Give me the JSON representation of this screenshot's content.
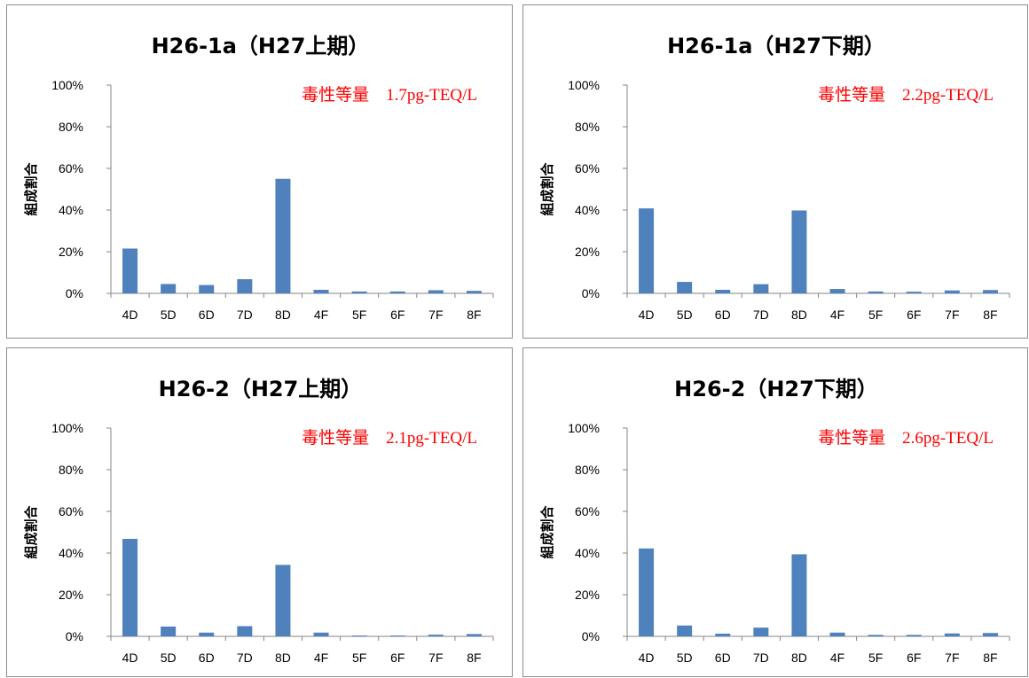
{
  "chart_data": [
    {
      "type": "bar",
      "title": "H26-1a（H27上期）",
      "annotation": "毒性等量　1.7pg-TEQ/L",
      "ylabel": "組成割合",
      "xlabel": "",
      "ylim": [
        0,
        100
      ],
      "yticks": [
        "0%",
        "20%",
        "40%",
        "60%",
        "80%",
        "100%"
      ],
      "categories": [
        "4D",
        "5D",
        "6D",
        "7D",
        "8D",
        "4F",
        "5F",
        "6F",
        "7F",
        "8F"
      ],
      "values": [
        21.5,
        4.5,
        4.0,
        6.8,
        55.0,
        1.7,
        0.9,
        0.9,
        1.5,
        1.2
      ],
      "color": "#4f81bd",
      "grid": false,
      "legend": "none"
    },
    {
      "type": "bar",
      "title": "H26-1a（H27下期）",
      "annotation": "毒性等量　2.2pg-TEQ/L",
      "ylabel": "組成割合",
      "xlabel": "",
      "ylim": [
        0,
        100
      ],
      "yticks": [
        "0%",
        "20%",
        "40%",
        "60%",
        "80%",
        "100%"
      ],
      "categories": [
        "4D",
        "5D",
        "6D",
        "7D",
        "8D",
        "4F",
        "5F",
        "6F",
        "7F",
        "8F"
      ],
      "values": [
        40.8,
        5.5,
        1.7,
        4.4,
        39.8,
        2.1,
        0.9,
        0.8,
        1.4,
        1.6
      ],
      "color": "#4f81bd",
      "grid": false,
      "legend": "none"
    },
    {
      "type": "bar",
      "title": "H26-2（H27上期）",
      "annotation": "毒性等量　2.1pg-TEQ/L",
      "ylabel": "組成割合",
      "xlabel": "",
      "ylim": [
        0,
        100
      ],
      "yticks": [
        "0%",
        "20%",
        "40%",
        "60%",
        "80%",
        "100%"
      ],
      "categories": [
        "4D",
        "5D",
        "6D",
        "7D",
        "8D",
        "4F",
        "5F",
        "6F",
        "7F",
        "8F"
      ],
      "values": [
        46.8,
        4.7,
        1.8,
        4.9,
        34.3,
        1.8,
        0.4,
        0.4,
        0.8,
        1.1
      ],
      "color": "#4f81bd",
      "grid": false,
      "legend": "none"
    },
    {
      "type": "bar",
      "title": "H26-2（H27下期）",
      "annotation": "毒性等量　2.6pg-TEQ/L",
      "ylabel": "組成割合",
      "xlabel": "",
      "ylim": [
        0,
        100
      ],
      "yticks": [
        "0%",
        "20%",
        "40%",
        "60%",
        "80%",
        "100%"
      ],
      "categories": [
        "4D",
        "5D",
        "6D",
        "7D",
        "8D",
        "4F",
        "5F",
        "6F",
        "7F",
        "8F"
      ],
      "values": [
        42.2,
        5.2,
        1.3,
        4.2,
        39.4,
        1.8,
        0.7,
        0.7,
        1.4,
        1.6
      ],
      "color": "#4f81bd",
      "grid": false,
      "legend": "none"
    }
  ]
}
